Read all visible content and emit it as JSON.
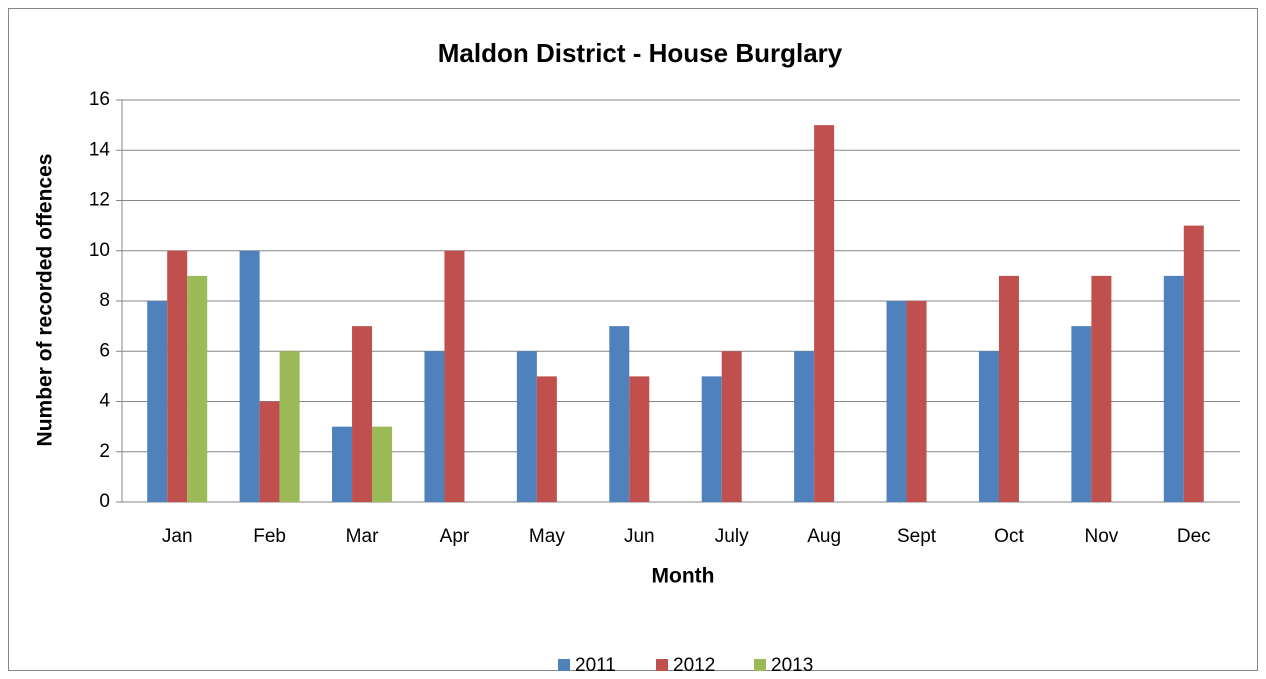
{
  "chart_data": {
    "type": "bar",
    "title": "Maldon District - House Burglary",
    "x_label": "Month",
    "y_label": "Number of recorded offences",
    "categories": [
      "Jan",
      "Feb",
      "Mar",
      "Apr",
      "May",
      "Jun",
      "July",
      "Aug",
      "Sept",
      "Oct",
      "Nov",
      "Dec"
    ],
    "series": [
      {
        "name": "2011",
        "color": "#4f81bd",
        "values": [
          8,
          10,
          3,
          6,
          6,
          7,
          5,
          6,
          8,
          6,
          7,
          9
        ]
      },
      {
        "name": "2012",
        "color": "#c0504d",
        "values": [
          10,
          4,
          7,
          10,
          5,
          5,
          6,
          15,
          8,
          9,
          9,
          11
        ]
      },
      {
        "name": "2013",
        "color": "#9bbb59",
        "values": [
          9,
          6,
          3,
          null,
          null,
          null,
          null,
          null,
          null,
          null,
          null,
          null
        ]
      }
    ],
    "ylim": [
      0,
      16
    ],
    "yticks": [
      0,
      2,
      4,
      6,
      8,
      10,
      12,
      14,
      16
    ],
    "grid": true,
    "legend": "bottom"
  }
}
